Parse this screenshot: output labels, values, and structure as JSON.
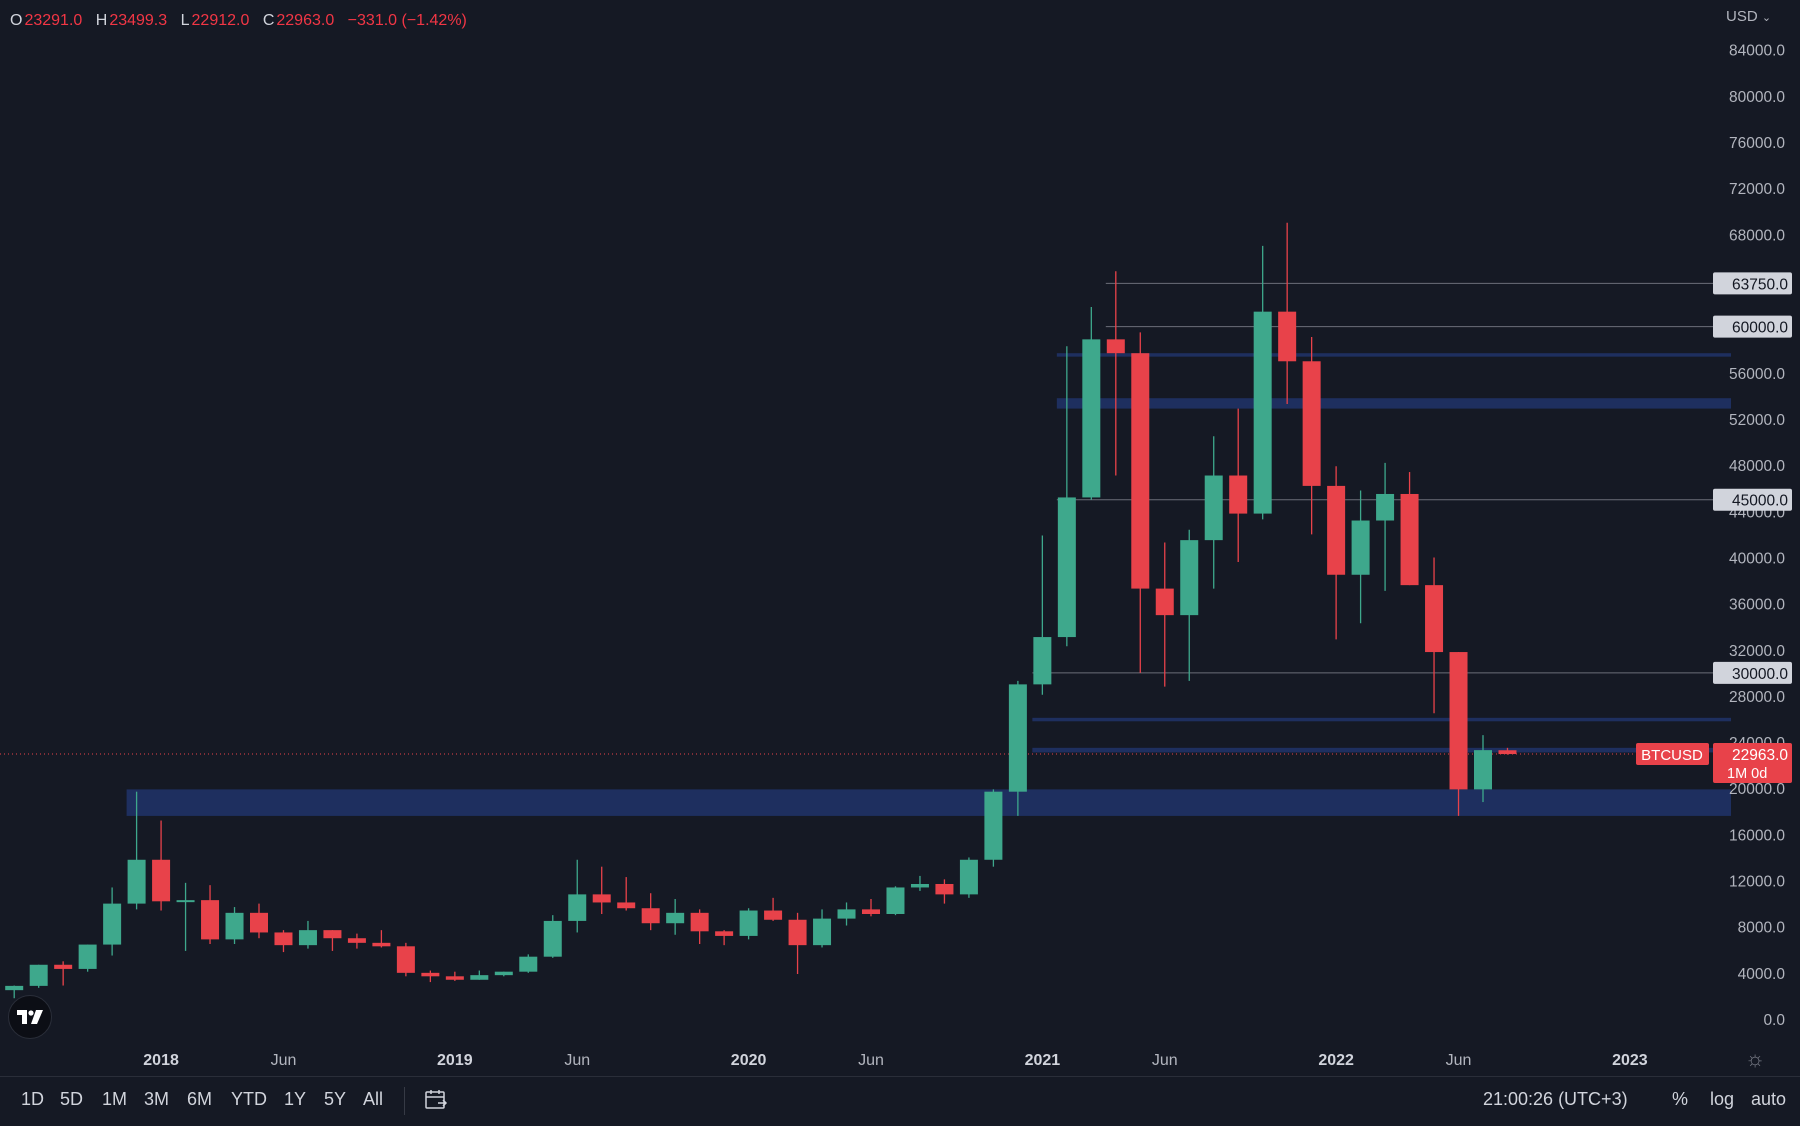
{
  "legend": {
    "o_label": "O",
    "o_value": "23291.0",
    "h_label": "H",
    "h_value": "23499.3",
    "l_label": "L",
    "l_value": "22912.0",
    "c_label": "C",
    "c_value": "22963.0",
    "change": "−331.0 (−1.42%)"
  },
  "currency": "USD",
  "toolbar": {
    "ranges": [
      "1D",
      "5D",
      "1M",
      "3M",
      "6M",
      "YTD",
      "1Y",
      "5Y",
      "All"
    ],
    "clock": "21:00:26 (UTC+3)",
    "percent_label": "%",
    "log_label": "log",
    "auto_label": "auto"
  },
  "colors": {
    "up": "#3ea88c",
    "down": "#e8424a",
    "background": "#151924",
    "zone": "#1e2f5f",
    "line": "#3c4a8a",
    "level": "#6b6e78",
    "axis_text": "#b2b5be"
  },
  "icons": {
    "logo": "tradingview-logo-icon",
    "settings": "gear-icon",
    "date_range": "calendar-range-icon"
  },
  "chart_data": {
    "type": "candlestick",
    "symbol": "BTCUSD",
    "interval": "1M",
    "last_price": 22963.0,
    "last_price_label": "22963.0",
    "countdown_label": "1M 0d",
    "y_axis": {
      "min": 0,
      "max": 84000,
      "ticks": [
        0,
        4000,
        8000,
        12000,
        16000,
        20000,
        24000,
        28000,
        32000,
        36000,
        40000,
        44000,
        48000,
        52000,
        56000,
        60000,
        64000,
        68000,
        72000,
        76000,
        80000,
        84000
      ]
    },
    "x_axis_labels": [
      {
        "date": "2018-01",
        "label": "2018",
        "bold": true
      },
      {
        "date": "2018-06",
        "label": "Jun",
        "bold": false
      },
      {
        "date": "2019-01",
        "label": "2019",
        "bold": true
      },
      {
        "date": "2019-06",
        "label": "Jun",
        "bold": false
      },
      {
        "date": "2020-01",
        "label": "2020",
        "bold": true
      },
      {
        "date": "2020-06",
        "label": "Jun",
        "bold": false
      },
      {
        "date": "2021-01",
        "label": "2021",
        "bold": true
      },
      {
        "date": "2021-06",
        "label": "Jun",
        "bold": false
      },
      {
        "date": "2022-01",
        "label": "2022",
        "bold": true
      },
      {
        "date": "2022-06",
        "label": "Jun",
        "bold": false
      },
      {
        "date": "2023-01",
        "label": "2023",
        "bold": true
      }
    ],
    "candles": [
      {
        "date": "2017-07",
        "o": 2500,
        "h": 2900,
        "l": 1800,
        "c": 2870
      },
      {
        "date": "2017-08",
        "o": 2870,
        "h": 4700,
        "l": 2700,
        "c": 4700
      },
      {
        "date": "2017-09",
        "o": 4700,
        "h": 5000,
        "l": 2900,
        "c": 4340
      },
      {
        "date": "2017-10",
        "o": 4340,
        "h": 6450,
        "l": 4100,
        "c": 6450
      },
      {
        "date": "2017-11",
        "o": 6450,
        "h": 11400,
        "l": 5500,
        "c": 10000
      },
      {
        "date": "2017-12",
        "o": 10000,
        "h": 19700,
        "l": 9500,
        "c": 13800
      },
      {
        "date": "2018-01",
        "o": 13800,
        "h": 17200,
        "l": 9400,
        "c": 10200
      },
      {
        "date": "2018-02",
        "o": 10200,
        "h": 11800,
        "l": 5900,
        "c": 10300
      },
      {
        "date": "2018-03",
        "o": 10300,
        "h": 11600,
        "l": 6500,
        "c": 6900
      },
      {
        "date": "2018-04",
        "o": 6900,
        "h": 9700,
        "l": 6500,
        "c": 9200
      },
      {
        "date": "2018-05",
        "o": 9200,
        "h": 10000,
        "l": 7000,
        "c": 7500
      },
      {
        "date": "2018-06",
        "o": 7500,
        "h": 7700,
        "l": 5800,
        "c": 6400
      },
      {
        "date": "2018-07",
        "o": 6400,
        "h": 8500,
        "l": 6100,
        "c": 7700
      },
      {
        "date": "2018-08",
        "o": 7700,
        "h": 7700,
        "l": 5900,
        "c": 7000
      },
      {
        "date": "2018-09",
        "o": 7000,
        "h": 7400,
        "l": 6100,
        "c": 6600
      },
      {
        "date": "2018-10",
        "o": 6600,
        "h": 7700,
        "l": 6200,
        "c": 6300
      },
      {
        "date": "2018-11",
        "o": 6300,
        "h": 6600,
        "l": 3700,
        "c": 4000
      },
      {
        "date": "2018-12",
        "o": 4000,
        "h": 4200,
        "l": 3200,
        "c": 3700
      },
      {
        "date": "2019-01",
        "o": 3700,
        "h": 4100,
        "l": 3300,
        "c": 3400
      },
      {
        "date": "2019-02",
        "o": 3400,
        "h": 4200,
        "l": 3400,
        "c": 3800
      },
      {
        "date": "2019-03",
        "o": 3800,
        "h": 4100,
        "l": 3700,
        "c": 4100
      },
      {
        "date": "2019-04",
        "o": 4100,
        "h": 5600,
        "l": 4000,
        "c": 5400
      },
      {
        "date": "2019-05",
        "o": 5400,
        "h": 9000,
        "l": 5300,
        "c": 8500
      },
      {
        "date": "2019-06",
        "o": 8500,
        "h": 13800,
        "l": 7500,
        "c": 10800
      },
      {
        "date": "2019-07",
        "o": 10800,
        "h": 13200,
        "l": 9100,
        "c": 10100
      },
      {
        "date": "2019-08",
        "o": 10100,
        "h": 12300,
        "l": 9400,
        "c": 9600
      },
      {
        "date": "2019-09",
        "o": 9600,
        "h": 10900,
        "l": 7700,
        "c": 8300
      },
      {
        "date": "2019-10",
        "o": 8300,
        "h": 10400,
        "l": 7300,
        "c": 9200
      },
      {
        "date": "2019-11",
        "o": 9200,
        "h": 9500,
        "l": 6500,
        "c": 7600
      },
      {
        "date": "2019-12",
        "o": 7600,
        "h": 7700,
        "l": 6400,
        "c": 7200
      },
      {
        "date": "2020-01",
        "o": 7200,
        "h": 9600,
        "l": 6900,
        "c": 9400
      },
      {
        "date": "2020-02",
        "o": 9400,
        "h": 10500,
        "l": 8500,
        "c": 8600
      },
      {
        "date": "2020-03",
        "o": 8600,
        "h": 9200,
        "l": 3900,
        "c": 6400
      },
      {
        "date": "2020-04",
        "o": 6400,
        "h": 9500,
        "l": 6200,
        "c": 8700
      },
      {
        "date": "2020-05",
        "o": 8700,
        "h": 10100,
        "l": 8100,
        "c": 9500
      },
      {
        "date": "2020-06",
        "o": 9500,
        "h": 10400,
        "l": 8900,
        "c": 9100
      },
      {
        "date": "2020-07",
        "o": 9100,
        "h": 11500,
        "l": 9000,
        "c": 11400
      },
      {
        "date": "2020-08",
        "o": 11400,
        "h": 12400,
        "l": 11100,
        "c": 11700
      },
      {
        "date": "2020-09",
        "o": 11700,
        "h": 12100,
        "l": 10000,
        "c": 10800
      },
      {
        "date": "2020-10",
        "o": 10800,
        "h": 14000,
        "l": 10500,
        "c": 13800
      },
      {
        "date": "2020-11",
        "o": 13800,
        "h": 19900,
        "l": 13200,
        "c": 19700
      },
      {
        "date": "2020-12",
        "o": 19700,
        "h": 29300,
        "l": 17600,
        "c": 29000
      },
      {
        "date": "2021-01",
        "o": 29000,
        "h": 41900,
        "l": 28100,
        "c": 33100
      },
      {
        "date": "2021-02",
        "o": 33100,
        "h": 58300,
        "l": 32300,
        "c": 45200
      },
      {
        "date": "2021-03",
        "o": 45200,
        "h": 61700,
        "l": 45000,
        "c": 58900
      },
      {
        "date": "2021-04",
        "o": 58900,
        "h": 64800,
        "l": 47100,
        "c": 57700
      },
      {
        "date": "2021-05",
        "o": 57700,
        "h": 59500,
        "l": 30000,
        "c": 37300
      },
      {
        "date": "2021-06",
        "o": 37300,
        "h": 41300,
        "l": 28800,
        "c": 35000
      },
      {
        "date": "2021-07",
        "o": 35000,
        "h": 42400,
        "l": 29300,
        "c": 41500
      },
      {
        "date": "2021-08",
        "o": 41500,
        "h": 50500,
        "l": 37300,
        "c": 47100
      },
      {
        "date": "2021-09",
        "o": 47100,
        "h": 52900,
        "l": 39600,
        "c": 43800
      },
      {
        "date": "2021-10",
        "o": 43800,
        "h": 67000,
        "l": 43300,
        "c": 61300
      },
      {
        "date": "2021-11",
        "o": 61300,
        "h": 69000,
        "l": 53300,
        "c": 57000
      },
      {
        "date": "2021-12",
        "o": 57000,
        "h": 59100,
        "l": 42000,
        "c": 46200
      },
      {
        "date": "2022-01",
        "o": 46200,
        "h": 47900,
        "l": 32900,
        "c": 38500
      },
      {
        "date": "2022-02",
        "o": 38500,
        "h": 45800,
        "l": 34300,
        "c": 43200
      },
      {
        "date": "2022-03",
        "o": 43200,
        "h": 48200,
        "l": 37100,
        "c": 45500
      },
      {
        "date": "2022-04",
        "o": 45500,
        "h": 47400,
        "l": 37600,
        "c": 37600
      },
      {
        "date": "2022-05",
        "o": 37600,
        "h": 40000,
        "l": 26500,
        "c": 31800
      },
      {
        "date": "2022-06",
        "o": 31800,
        "h": 31800,
        "l": 17600,
        "c": 19900
      },
      {
        "date": "2022-07",
        "o": 19900,
        "h": 24600,
        "l": 18800,
        "c": 23300
      },
      {
        "date": "2022-08",
        "o": 23291,
        "h": 23499.3,
        "l": 22912,
        "c": 22963
      }
    ],
    "price_levels": [
      {
        "price": 63750,
        "label": "63750.0",
        "start": "2021-04"
      },
      {
        "price": 60000,
        "label": "60000.0",
        "start": "2021-04"
      },
      {
        "price": 45000,
        "label": "45000.0",
        "start": "2021-02"
      },
      {
        "price": 30000,
        "label": "30000.0",
        "start": "2021-01"
      }
    ],
    "zones": [
      {
        "from": 17600,
        "to": 19900,
        "start": "2017-12"
      },
      {
        "from": 52900,
        "to": 53800,
        "start": "2021-02"
      },
      {
        "from": 57400,
        "to": 57700,
        "start": "2021-02"
      },
      {
        "from": 25800,
        "to": 26100,
        "start": "2021-01"
      },
      {
        "from": 23100,
        "to": 23500,
        "start": "2021-01"
      }
    ]
  }
}
